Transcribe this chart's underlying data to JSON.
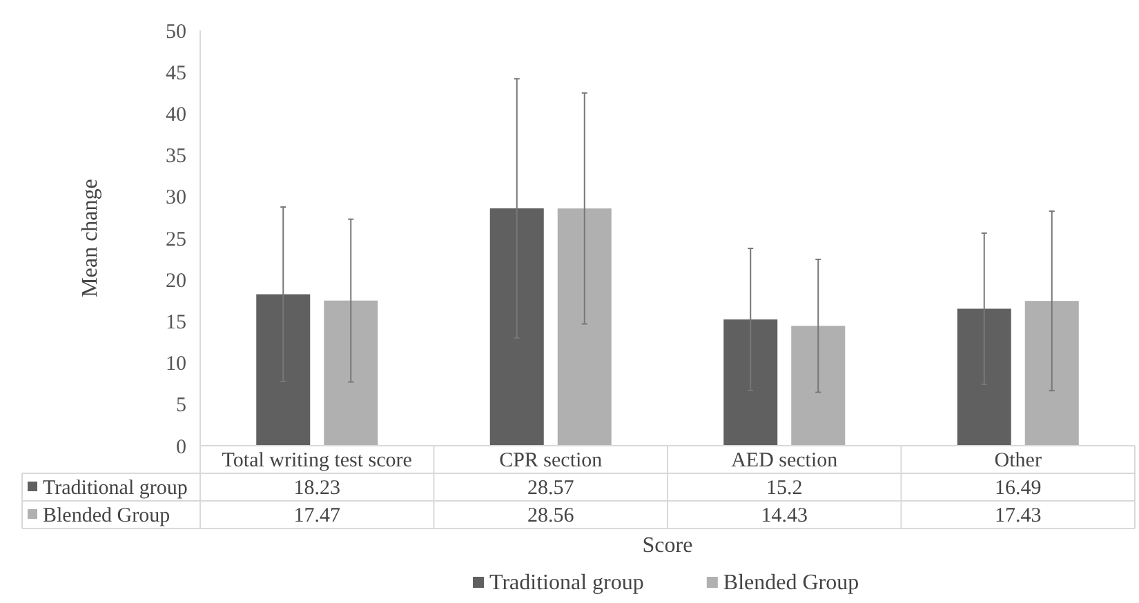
{
  "chart_data": {
    "type": "bar",
    "xlabel": "Score",
    "ylabel": "Mean change",
    "categories": [
      "Total  writing test score",
      "CPR section",
      "AED section",
      "Other"
    ],
    "series": [
      {
        "name": "Traditional group",
        "color": "#606060",
        "values": [
          18.23,
          28.57,
          15.2,
          16.49
        ],
        "errors": [
          10.5,
          15.6,
          8.55,
          9.1
        ]
      },
      {
        "name": "Blended Group",
        "color": "#b0b0b0",
        "values": [
          17.47,
          28.56,
          14.43,
          17.43
        ],
        "errors": [
          9.8,
          13.9,
          8.0,
          10.8
        ]
      }
    ],
    "ylim": [
      0,
      50
    ],
    "yticks": [
      0,
      5,
      10,
      15,
      20,
      25,
      30,
      35,
      40,
      45,
      50
    ],
    "grid": false,
    "legend": "bottom",
    "data_labels": true
  }
}
